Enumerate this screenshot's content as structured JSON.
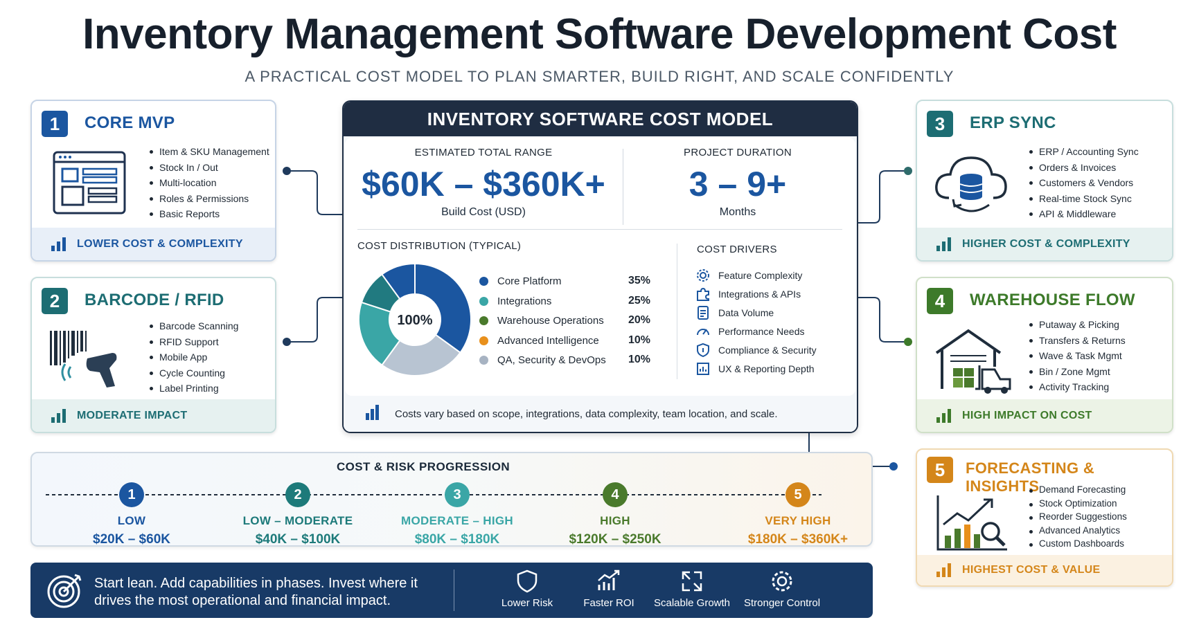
{
  "title": "Inventory Management Software Development Cost",
  "subtitle": "A PRACTICAL COST MODEL TO PLAN SMARTER, BUILD RIGHT, AND SCALE CONFIDENTLY",
  "colors": {
    "navy": "#1b56a0",
    "teal": "#1d7a7a",
    "green": "#3d7a2a",
    "orange": "#d4861a",
    "dark": "#1f2d42"
  },
  "cards": [
    {
      "num": "1",
      "title": "CORE MVP",
      "items": [
        "Item & SKU Management",
        "Stock In / Out",
        "Multi-location",
        "Roles & Permissions",
        "Basic Reports"
      ],
      "footer": "LOWER COST & COMPLEXITY",
      "icon": "dashboard-icon",
      "color": "#1b56a0"
    },
    {
      "num": "2",
      "title": "BARCODE / RFID",
      "items": [
        "Barcode Scanning",
        "RFID Support",
        "Mobile App",
        "Cycle Counting",
        "Label Printing"
      ],
      "footer": "MODERATE IMPACT",
      "icon": "barcode-scanner-icon",
      "color": "#1d7a7a"
    },
    {
      "num": "3",
      "title": "ERP SYNC",
      "items": [
        "ERP / Accounting Sync",
        "Orders & Invoices",
        "Customers & Vendors",
        "Real-time Stock Sync",
        "API & Middleware"
      ],
      "footer": "HIGHER COST & COMPLEXITY",
      "icon": "cloud-database-icon",
      "color": "#1d7a7a"
    },
    {
      "num": "4",
      "title": "WAREHOUSE FLOW",
      "items": [
        "Putaway & Picking",
        "Transfers & Returns",
        "Wave & Task Mgmt",
        "Bin / Zone Mgmt",
        "Activity Tracking"
      ],
      "footer": "HIGH IMPACT ON COST",
      "icon": "warehouse-forklift-icon",
      "color": "#3d7a2a"
    },
    {
      "num": "5",
      "title": "FORECASTING & INSIGHTS",
      "items": [
        "Demand Forecasting",
        "Stock Optimization",
        "Reorder Suggestions",
        "Advanced Analytics",
        "Custom Dashboards"
      ],
      "footer": "HIGHEST COST & VALUE",
      "icon": "analytics-chart-icon",
      "color": "#d4861a"
    }
  ],
  "center": {
    "header": "INVENTORY SOFTWARE COST MODEL",
    "range_label": "ESTIMATED TOTAL RANGE",
    "range_value": "$60K – $360K+",
    "range_sub": "Build Cost (USD)",
    "duration_label": "PROJECT DURATION",
    "duration_value": "3 – 9+",
    "duration_sub": "Months",
    "dist_label": "COST DISTRIBUTION (TYPICAL)",
    "drivers_label": "COST DRIVERS",
    "drivers": [
      {
        "label": "Feature Complexity",
        "icon": "gear-icon"
      },
      {
        "label": "Integrations & APIs",
        "icon": "puzzle-icon"
      },
      {
        "label": "Data Volume",
        "icon": "document-icon"
      },
      {
        "label": "Performance Needs",
        "icon": "gauge-icon"
      },
      {
        "label": "Compliance & Security",
        "icon": "shield-icon"
      },
      {
        "label": "UX & Reporting Depth",
        "icon": "report-icon"
      }
    ],
    "footnote": "Costs vary based on scope, integrations, data complexity, team location, and scale."
  },
  "chart_data": {
    "type": "pie",
    "title": "COST DISTRIBUTION (TYPICAL)",
    "center_label": "100%",
    "slices": [
      {
        "label": "Core Platform",
        "value": 35,
        "display": "35%",
        "color": "#1b56a0"
      },
      {
        "label": "Integrations",
        "value": 25,
        "display": "25%",
        "color": "#3aa6a6"
      },
      {
        "label": "Warehouse Operations",
        "value": 20,
        "display": "20%",
        "color": "#4a7a2c"
      },
      {
        "label": "Advanced Intelligence",
        "value": 10,
        "display": "10%",
        "color": "#e8901c"
      },
      {
        "label": "QA, Security & DevOps",
        "value": 10,
        "display": "10%",
        "color": "#a7b3c2"
      }
    ],
    "donut_colors": [
      "#1b56a0",
      "#b8c4d2",
      "#3aa6a6",
      "#217a80"
    ],
    "legend": "right"
  },
  "progression": {
    "title": "COST & RISK PROGRESSION",
    "steps": [
      {
        "num": "1",
        "level": "LOW",
        "cost": "$20K – $60K",
        "color": "#1b56a0"
      },
      {
        "num": "2",
        "level": "LOW – MODERATE",
        "cost": "$40K – $100K",
        "color": "#1d7a7a"
      },
      {
        "num": "3",
        "level": "MODERATE – HIGH",
        "cost": "$80K – $180K",
        "color": "#3aa6a6"
      },
      {
        "num": "4",
        "level": "HIGH",
        "cost": "$120K – $250K",
        "color": "#4a7a2c"
      },
      {
        "num": "5",
        "level": "VERY HIGH",
        "cost": "$180K – $360K+",
        "color": "#d4861a"
      }
    ]
  },
  "banner": {
    "text": "Start lean. Add capabilities in phases. Invest where it drives the most operational and financial impact.",
    "items": [
      {
        "label": "Lower Risk",
        "icon": "shield-icon"
      },
      {
        "label": "Faster ROI",
        "icon": "growth-chart-icon"
      },
      {
        "label": "Scalable Growth",
        "icon": "expand-icon"
      },
      {
        "label": "Stronger Control",
        "icon": "gear-icon"
      }
    ]
  }
}
